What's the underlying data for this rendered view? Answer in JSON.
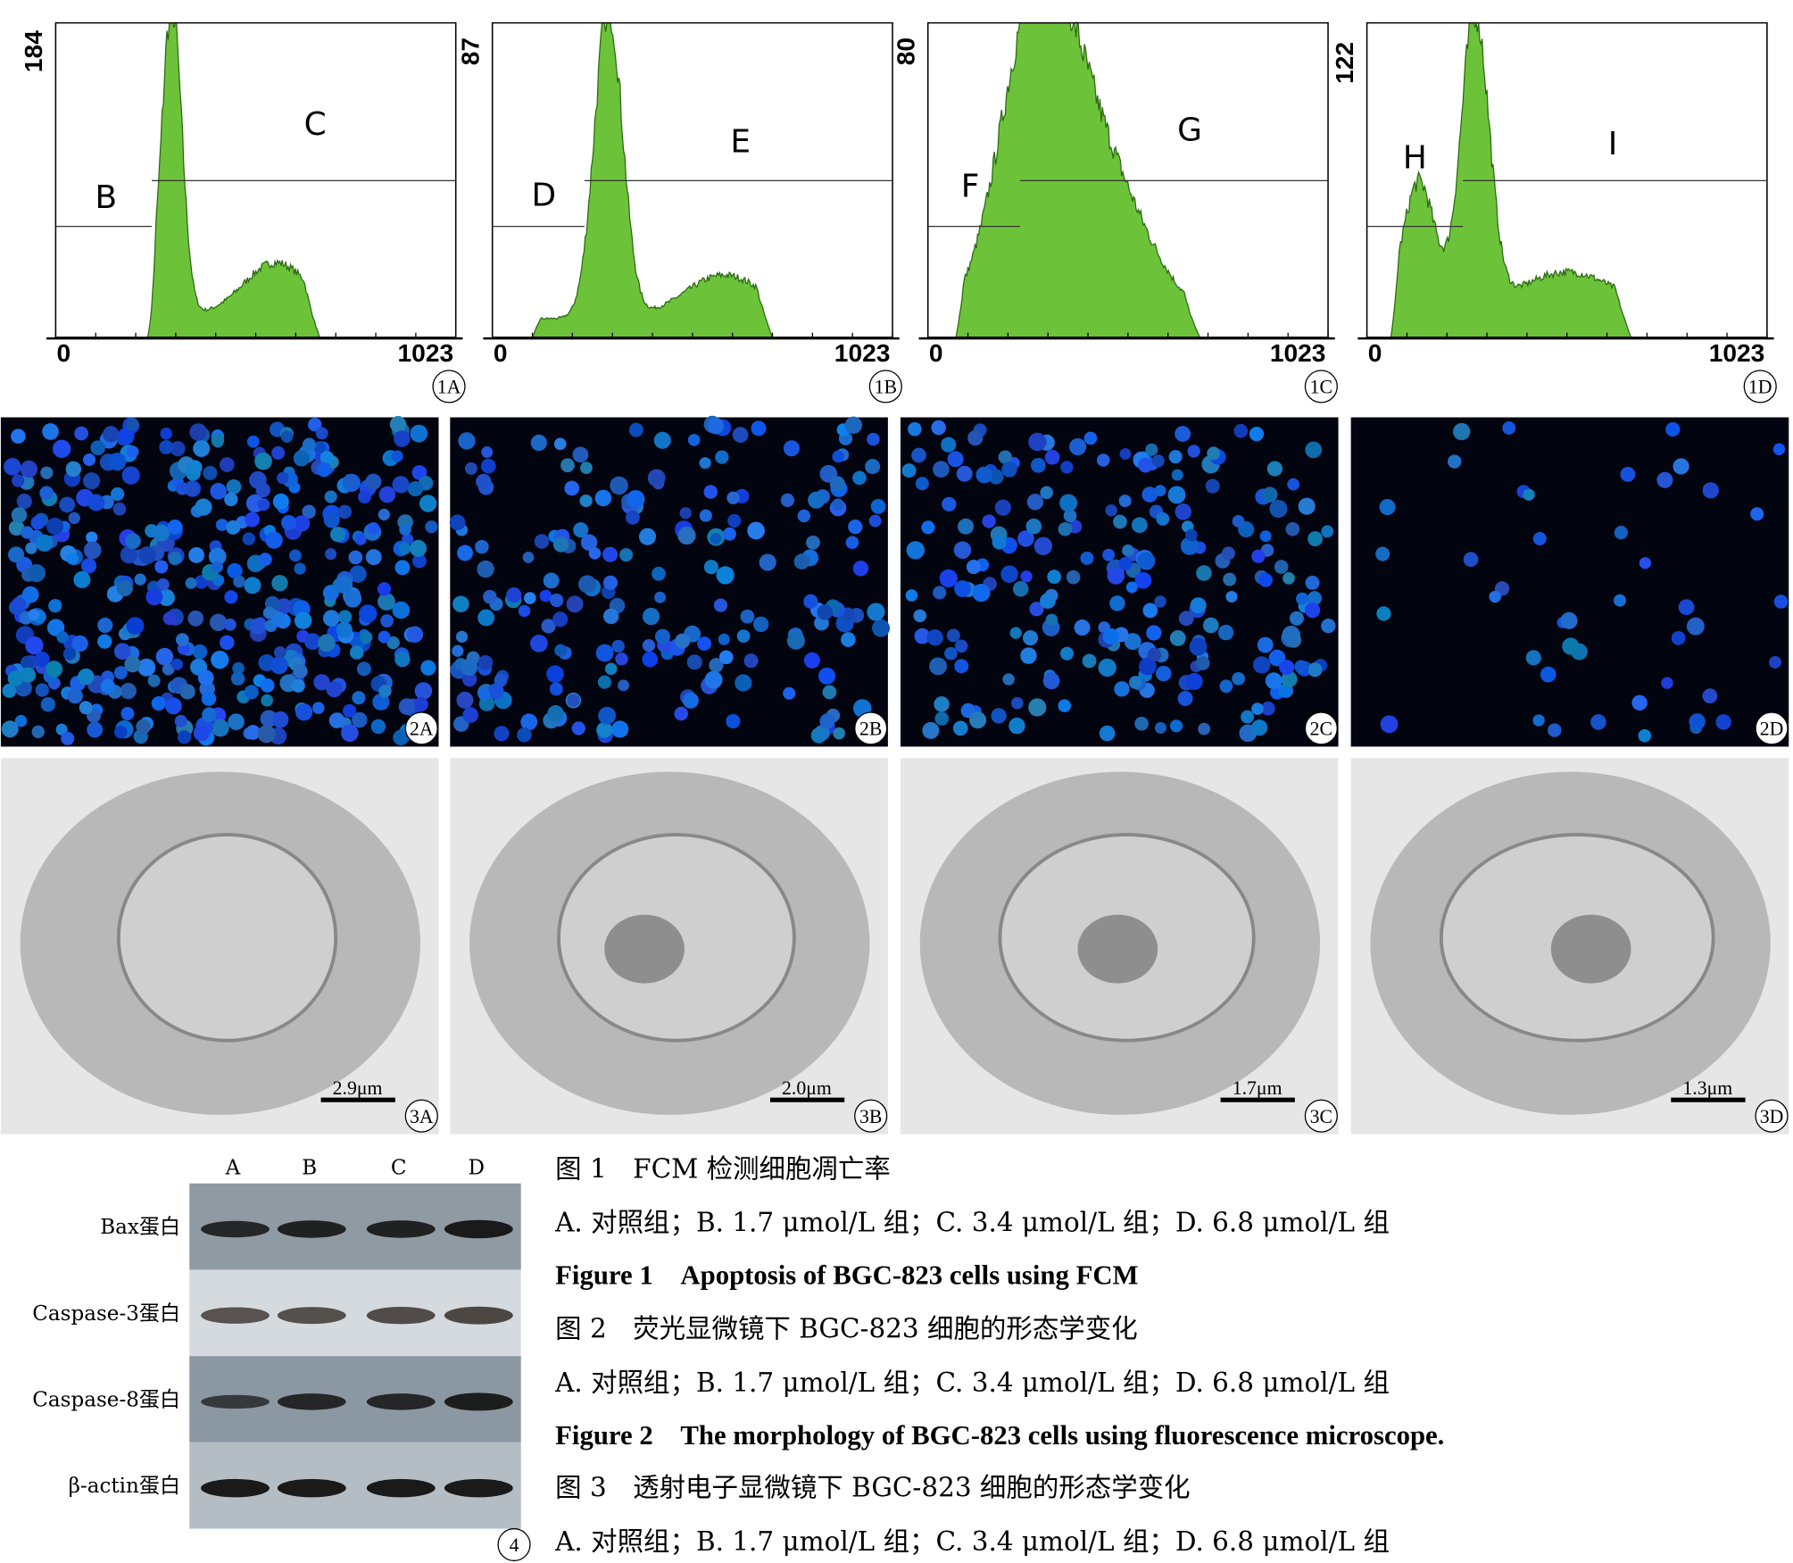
{
  "figure1": {
    "panels": [
      {
        "ymax": "184",
        "xmin": "0",
        "xmax": "1023",
        "gates": [
          "B",
          "C"
        ],
        "label": "1A"
      },
      {
        "ymax": "87",
        "xmin": "0",
        "xmax": "1023",
        "gates": [
          "D",
          "E"
        ],
        "label": "1B"
      },
      {
        "ymax": "80",
        "xmin": "0",
        "xmax": "1023",
        "gates": [
          "F",
          "G"
        ],
        "label": "1C"
      },
      {
        "ymax": "122",
        "xmin": "0",
        "xmax": "1023",
        "gates": [
          "H",
          "I"
        ],
        "label": "1D"
      }
    ]
  },
  "figure2": {
    "panels": [
      {
        "label": "2A"
      },
      {
        "label": "2B"
      },
      {
        "label": "2C"
      },
      {
        "label": "2D"
      }
    ]
  },
  "figure3": {
    "panels": [
      {
        "scale": "2.9μm",
        "label": "3A"
      },
      {
        "scale": "2.0μm",
        "label": "3B"
      },
      {
        "scale": "1.7μm",
        "label": "3C"
      },
      {
        "scale": "1.3μm",
        "label": "3D"
      }
    ]
  },
  "figure4": {
    "lanes": [
      "A",
      "B",
      "C",
      "D"
    ],
    "rows": [
      "Bax蛋白",
      "Caspase-3蛋白",
      "Caspase-8蛋白",
      "β-actin蛋白"
    ],
    "label": "4"
  },
  "captions": [
    "图 1　FCM 检测细胞凋亡率",
    "A. 对照组；B. 1.7 μmol/L 组；C. 3.4 μmol/L 组；D. 6.8 μmol/L 组",
    "Figure 1　Apoptosis of BGC-823 cells using FCM",
    "图 2　荧光显微镜下 BGC-823 细胞的形态学变化",
    "A. 对照组；B. 1.7 μmol/L 组；C. 3.4 μmol/L 组；D. 6.8 μmol/L 组",
    "Figure 2　The morphology of BGC-823 cells using fluorescence microscope.",
    "图 3　透射电子显微镜下 BGC-823 细胞的形态学变化",
    "A. 对照组；B. 1.7 μmol/L 组；C. 3.4 μmol/L 组；D. 6.8 μmol/L 组"
  ]
}
